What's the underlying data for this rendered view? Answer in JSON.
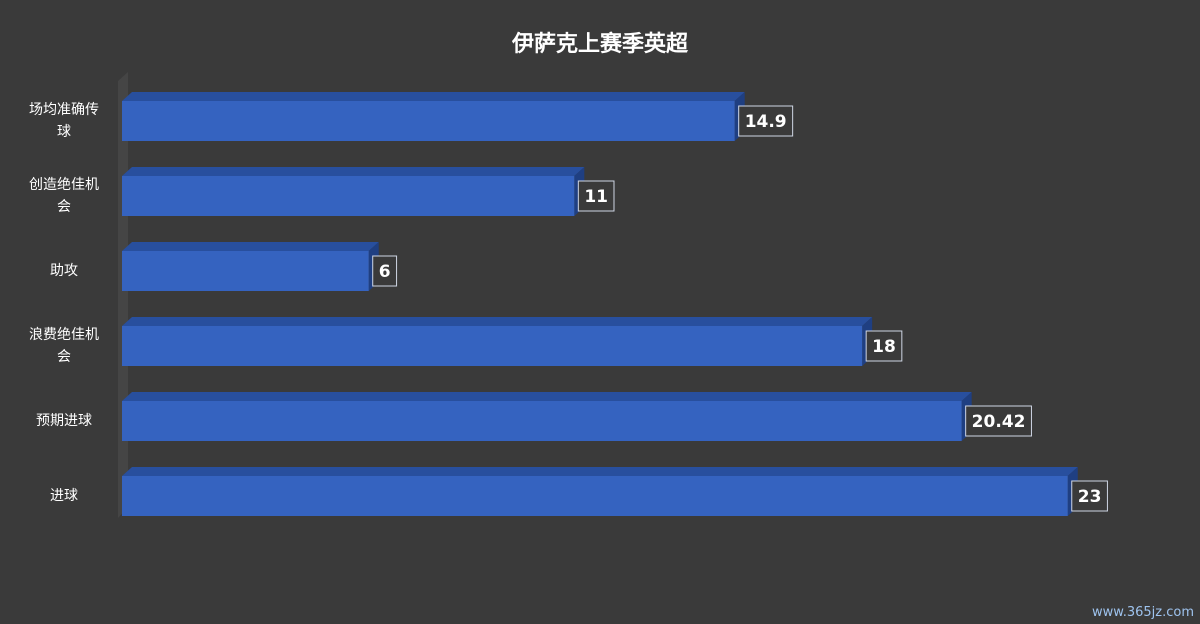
{
  "chart_data": {
    "type": "bar",
    "orientation": "horizontal",
    "title": "伊萨克上赛季英超",
    "categories": [
      "场均准确传球",
      "创造绝佳机会",
      "助攻",
      "浪费绝佳机会",
      "预期进球",
      "进球"
    ],
    "values": [
      14.9,
      11,
      6,
      18,
      20.42,
      23
    ],
    "color": "#3563c0",
    "xlim": [
      0,
      25
    ],
    "watermark": "www.365jz.com"
  }
}
